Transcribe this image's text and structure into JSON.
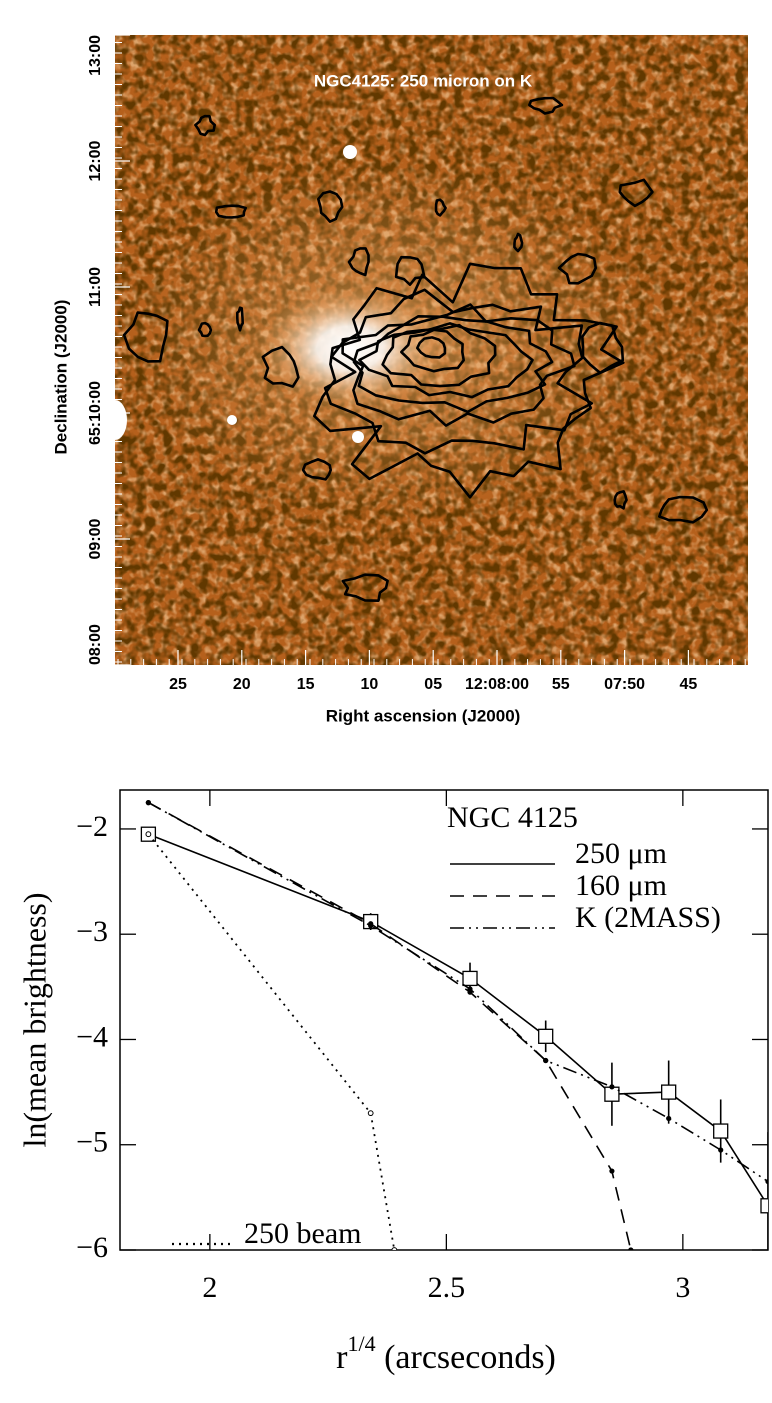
{
  "chart_data": [
    {
      "type": "image",
      "title": "NGC4125: 250 micron on K",
      "xlabel": "Right ascension (J2000)",
      "ylabel": "Declination (J2000)",
      "xtick_labels": [
        "25",
        "20",
        "15",
        "10",
        "05",
        "12:08:00",
        "55",
        "07:50",
        "45"
      ],
      "ytick_labels": [
        "08:00",
        "09:00",
        "65:10:00",
        "11:00",
        "12:00",
        "13:00"
      ]
    },
    {
      "type": "line",
      "legend_title": "NGC 4125",
      "xlabel": {
        "base": "r",
        "sup": "1/4",
        "rest": " (arcseconds)"
      },
      "ylabel": "ln(mean brightness)",
      "xlim": [
        1.81,
        3.18
      ],
      "ylim": [
        -6,
        -1.63
      ],
      "xticks": [
        2,
        2.5,
        3
      ],
      "yticks": [
        {
          "value": -6,
          "label": "−6"
        },
        {
          "value": -5,
          "label": "−5"
        },
        {
          "value": -4,
          "label": "−4"
        },
        {
          "value": -3,
          "label": "−3"
        },
        {
          "value": -2,
          "label": "−2"
        }
      ],
      "legend": "upper right",
      "series": [
        {
          "name": "250 μm",
          "color": "#000000",
          "linestyle": "solid",
          "marker": "square",
          "x": [
            1.87,
            2.34,
            2.55,
            2.71,
            2.85,
            2.97,
            3.08,
            3.18
          ],
          "values": [
            -2.05,
            -2.88,
            -3.42,
            -3.97,
            -4.52,
            -4.5,
            -4.87,
            -5.58
          ],
          "errors": [
            0.05,
            0.08,
            0.15,
            0.15,
            0.3,
            0.3,
            0.3,
            0.7
          ]
        },
        {
          "name": "160 μm",
          "color": "#000000",
          "linestyle": "dashed",
          "marker": "dot",
          "x": [
            1.87,
            2.34,
            2.55,
            2.71,
            2.85,
            2.89
          ],
          "values": [
            -1.75,
            -2.9,
            -3.55,
            -4.2,
            -5.25,
            -6.0
          ]
        },
        {
          "name": "K (2MASS)",
          "color": "#000000",
          "linestyle": "dashdot",
          "marker": "dot",
          "x": [
            1.87,
            2.34,
            2.55,
            2.71,
            2.85,
            2.97,
            3.08,
            3.18
          ],
          "values": [
            -1.75,
            -2.92,
            -3.52,
            -4.2,
            -4.45,
            -4.75,
            -5.05,
            -5.35
          ]
        },
        {
          "name": "250 beam",
          "color": "#000000",
          "linestyle": "dotted",
          "marker": "circle",
          "legend": "lower left",
          "x": [
            1.87,
            2.34,
            2.39
          ],
          "values": [
            -2.05,
            -4.7,
            -6.0
          ]
        }
      ]
    }
  ]
}
